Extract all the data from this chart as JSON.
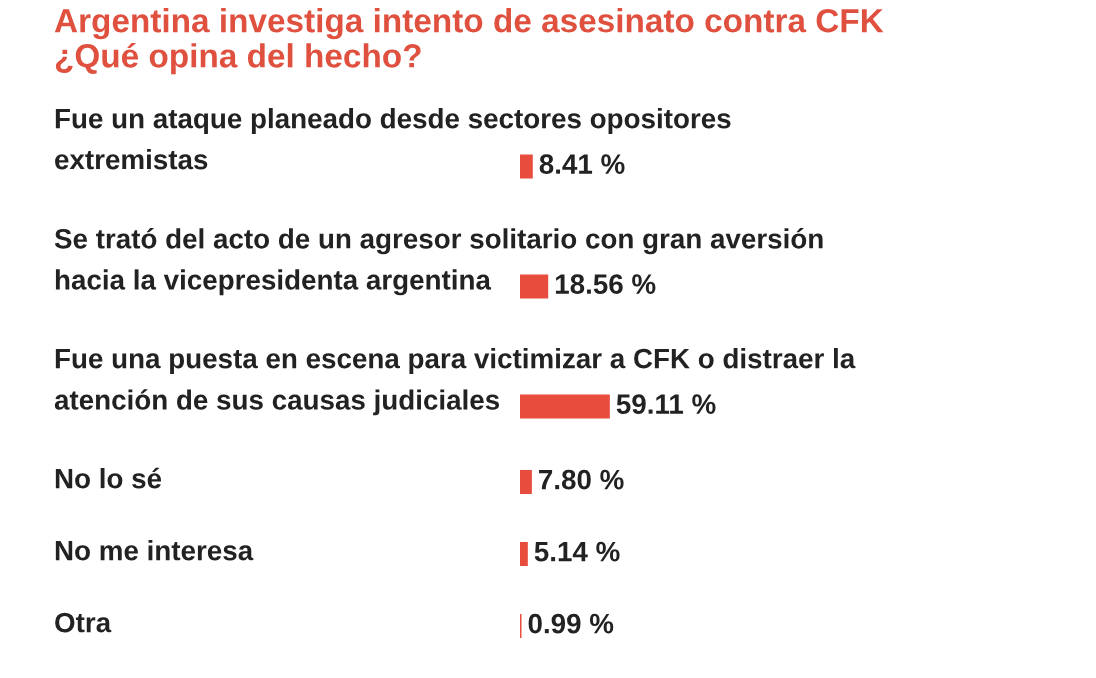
{
  "chart_data": {
    "type": "bar",
    "orientation": "horizontal",
    "title": "Argentina investiga intento de asesinato contra CFK ¿Qué opina del hecho?",
    "categories": [
      "Fue un ataque planeado desde sectores opositores extremistas",
      "Se trató del acto de un agresor solitario con gran aversión hacia la vicepresidenta argentina",
      "Fue una puesta en escena para victimizar a CFK o distraer la atención de sus causas judiciales",
      "No lo sé",
      "No me interesa",
      "Otra"
    ],
    "values": [
      8.41,
      18.56,
      59.11,
      7.8,
      5.14,
      0.99
    ],
    "value_labels": [
      "8.41 %",
      "18.56 %",
      "59.11 %",
      "7.80 %",
      "5.14 %",
      "0.99 %"
    ],
    "color": "#e74c3c"
  }
}
